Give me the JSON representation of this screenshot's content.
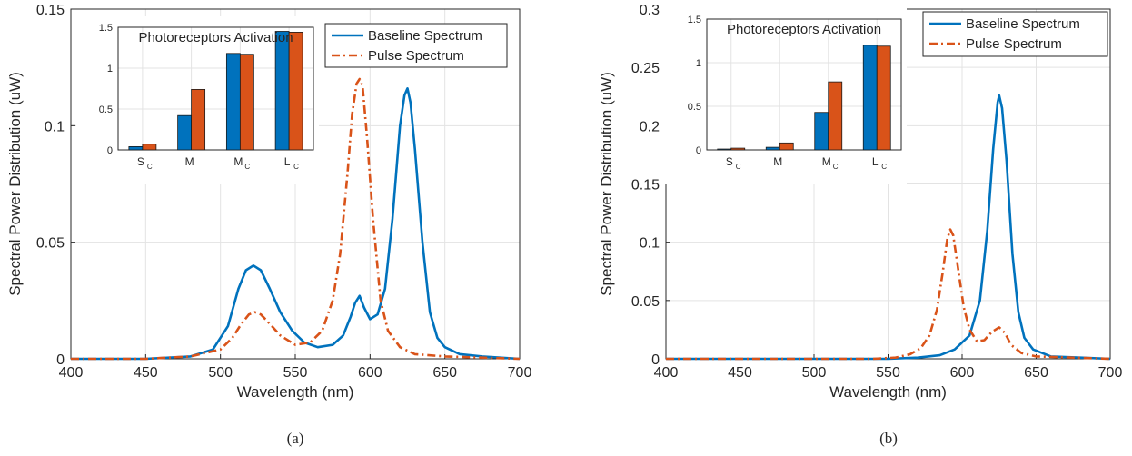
{
  "colors": {
    "baseline": "#0072BD",
    "pulse": "#D95319",
    "grid": "#e3e3e3",
    "axis": "#262626"
  },
  "chart_data": [
    {
      "type": "line",
      "caption": "(a)",
      "xlabel": "Wavelength (nm)",
      "ylabel": "Spectral Power Distribution (uW)",
      "xlim": [
        400,
        700
      ],
      "ylim": [
        0,
        0.15
      ],
      "xticks": [
        400,
        450,
        500,
        550,
        600,
        650,
        700
      ],
      "yticks": [
        0,
        0.05,
        0.1,
        0.15
      ],
      "yticklabels": [
        "0",
        "0.05",
        "0.1",
        "0.15"
      ],
      "grid": true,
      "legend": "top-right",
      "series": [
        {
          "name": "Baseline Spectrum",
          "style": "solid",
          "points": [
            [
              400,
              0
            ],
            [
              450,
              0
            ],
            [
              480,
              0.001
            ],
            [
              495,
              0.004
            ],
            [
              505,
              0.014
            ],
            [
              512,
              0.03
            ],
            [
              517,
              0.038
            ],
            [
              522,
              0.04
            ],
            [
              527,
              0.038
            ],
            [
              533,
              0.03
            ],
            [
              540,
              0.02
            ],
            [
              548,
              0.012
            ],
            [
              556,
              0.007
            ],
            [
              565,
              0.005
            ],
            [
              575,
              0.006
            ],
            [
              582,
              0.01
            ],
            [
              587,
              0.018
            ],
            [
              590,
              0.024
            ],
            [
              593,
              0.027
            ],
            [
              596,
              0.022
            ],
            [
              600,
              0.017
            ],
            [
              605,
              0.019
            ],
            [
              610,
              0.03
            ],
            [
              615,
              0.06
            ],
            [
              620,
              0.1
            ],
            [
              623,
              0.113
            ],
            [
              625,
              0.116
            ],
            [
              627,
              0.11
            ],
            [
              630,
              0.09
            ],
            [
              635,
              0.05
            ],
            [
              640,
              0.02
            ],
            [
              645,
              0.009
            ],
            [
              650,
              0.005
            ],
            [
              660,
              0.002
            ],
            [
              675,
              0.001
            ],
            [
              700,
              0
            ]
          ]
        },
        {
          "name": "Pulse Spectrum",
          "style": "dash-dot",
          "points": [
            [
              400,
              0
            ],
            [
              450,
              0
            ],
            [
              480,
              0.001
            ],
            [
              500,
              0.004
            ],
            [
              508,
              0.009
            ],
            [
              514,
              0.015
            ],
            [
              519,
              0.019
            ],
            [
              523,
              0.02
            ],
            [
              527,
              0.019
            ],
            [
              533,
              0.015
            ],
            [
              540,
              0.01
            ],
            [
              550,
              0.006
            ],
            [
              560,
              0.007
            ],
            [
              568,
              0.012
            ],
            [
              575,
              0.025
            ],
            [
              580,
              0.045
            ],
            [
              585,
              0.08
            ],
            [
              588,
              0.105
            ],
            [
              591,
              0.118
            ],
            [
              593,
              0.12
            ],
            [
              595,
              0.117
            ],
            [
              598,
              0.095
            ],
            [
              602,
              0.06
            ],
            [
              607,
              0.025
            ],
            [
              612,
              0.012
            ],
            [
              620,
              0.005
            ],
            [
              630,
              0.002
            ],
            [
              650,
              0.001
            ],
            [
              700,
              0
            ]
          ]
        }
      ],
      "inset": {
        "type": "bar",
        "title": "Photoreceptors Activation",
        "categories": [
          "S",
          "M",
          "M",
          "L"
        ],
        "subscripts": [
          "C",
          "",
          "C",
          "C"
        ],
        "ylim": [
          0,
          1.5
        ],
        "yticks": [
          0,
          0.5,
          1,
          1.5
        ],
        "yticklabels": [
          "0",
          "0.5",
          "1",
          "1.5"
        ],
        "series": [
          {
            "name": "Baseline Spectrum",
            "values": [
              0.04,
              0.42,
              1.18,
              1.45
            ]
          },
          {
            "name": "Pulse Spectrum",
            "values": [
              0.07,
              0.74,
              1.17,
              1.44
            ]
          }
        ]
      }
    },
    {
      "type": "line",
      "caption": "(b)",
      "xlabel": "Wavelength (nm)",
      "ylabel": "Spectral Power Distribution (uW)",
      "xlim": [
        400,
        700
      ],
      "ylim": [
        0,
        0.3
      ],
      "xticks": [
        400,
        450,
        500,
        550,
        600,
        650,
        700
      ],
      "yticks": [
        0,
        0.05,
        0.1,
        0.15,
        0.2,
        0.25,
        0.3
      ],
      "yticklabels": [
        "0",
        "0.05",
        "0.1",
        "0.15",
        "0.2",
        "0.25",
        "0.3"
      ],
      "grid": true,
      "legend": "top-right",
      "series": [
        {
          "name": "Baseline Spectrum",
          "style": "solid",
          "points": [
            [
              400,
              0
            ],
            [
              550,
              0
            ],
            [
              570,
              0.001
            ],
            [
              585,
              0.003
            ],
            [
              595,
              0.008
            ],
            [
              605,
              0.02
            ],
            [
              612,
              0.05
            ],
            [
              617,
              0.11
            ],
            [
              621,
              0.18
            ],
            [
              624,
              0.22
            ],
            [
              625,
              0.226
            ],
            [
              627,
              0.215
            ],
            [
              630,
              0.17
            ],
            [
              634,
              0.09
            ],
            [
              638,
              0.04
            ],
            [
              642,
              0.018
            ],
            [
              648,
              0.008
            ],
            [
              660,
              0.002
            ],
            [
              680,
              0.001
            ],
            [
              700,
              0
            ]
          ]
        },
        {
          "name": "Pulse Spectrum",
          "style": "dash-dot",
          "points": [
            [
              400,
              0
            ],
            [
              540,
              0
            ],
            [
              555,
              0.001
            ],
            [
              565,
              0.004
            ],
            [
              572,
              0.009
            ],
            [
              578,
              0.02
            ],
            [
              583,
              0.042
            ],
            [
              587,
              0.075
            ],
            [
              590,
              0.103
            ],
            [
              592,
              0.111
            ],
            [
              594,
              0.106
            ],
            [
              597,
              0.08
            ],
            [
              601,
              0.045
            ],
            [
              605,
              0.025
            ],
            [
              610,
              0.015
            ],
            [
              615,
              0.016
            ],
            [
              620,
              0.023
            ],
            [
              625,
              0.027
            ],
            [
              629,
              0.022
            ],
            [
              633,
              0.012
            ],
            [
              640,
              0.005
            ],
            [
              650,
              0.002
            ],
            [
              700,
              0
            ]
          ]
        }
      ],
      "inset": {
        "type": "bar",
        "title": "Photoreceptors Activation",
        "categories": [
          "S",
          "M",
          "M",
          "L"
        ],
        "subscripts": [
          "C",
          "",
          "C",
          "C"
        ],
        "ylim": [
          0,
          1.5
        ],
        "yticks": [
          0,
          0.5,
          1,
          1.5
        ],
        "yticklabels": [
          "0",
          "0.5",
          "1",
          "1.5"
        ],
        "series": [
          {
            "name": "Baseline Spectrum",
            "values": [
              0.01,
              0.03,
              0.43,
              1.2
            ]
          },
          {
            "name": "Pulse Spectrum",
            "values": [
              0.02,
              0.08,
              0.78,
              1.19
            ]
          }
        ]
      }
    }
  ]
}
